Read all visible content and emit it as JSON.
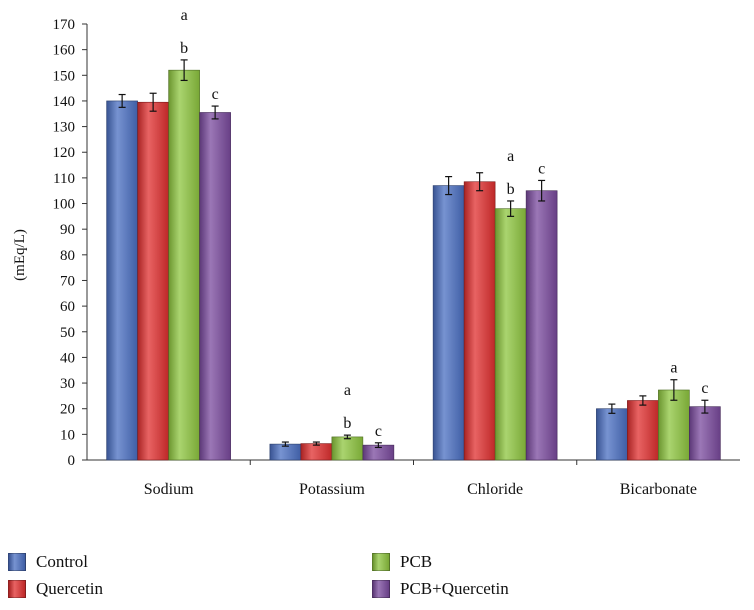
{
  "chart_data": {
    "type": "bar",
    "title": "",
    "xlabel": "",
    "ylabel": "(mEq/L)",
    "ylim": [
      0,
      170
    ],
    "yticks": [
      0,
      10,
      20,
      30,
      40,
      50,
      60,
      70,
      80,
      90,
      100,
      110,
      120,
      130,
      140,
      150,
      160,
      170
    ],
    "categories": [
      "Sodium",
      "Potassium",
      "Chloride",
      "Bicarbonate"
    ],
    "series": [
      {
        "name": "Control",
        "color": "#4a6fc2",
        "values": [
          140,
          6.2,
          107,
          20
        ],
        "errors": [
          2.5,
          0.8,
          3.5,
          1.8
        ],
        "marks": [
          "",
          "",
          "",
          ""
        ]
      },
      {
        "name": "Quercetin",
        "color": "#e02f2f",
        "values": [
          139.5,
          6.4,
          108.5,
          23.2
        ],
        "errors": [
          3.5,
          0.6,
          3.5,
          1.8
        ],
        "marks": [
          "",
          "",
          "",
          ""
        ]
      },
      {
        "name": "PCB",
        "color": "#8ec63f",
        "values": [
          152,
          9,
          98,
          27.3
        ],
        "errors": [
          4,
          0.7,
          3,
          4
        ],
        "marks": [
          "a b",
          "a b",
          "a b",
          "a"
        ]
      },
      {
        "name": "PCB+Quercetin",
        "color": "#7a4a9e",
        "values": [
          135.5,
          5.8,
          105,
          20.8
        ],
        "errors": [
          2.5,
          0.9,
          4,
          2.5
        ],
        "marks": [
          "c",
          "c",
          "c",
          "c"
        ]
      }
    ],
    "grid": false,
    "legend_position": "bottom"
  }
}
